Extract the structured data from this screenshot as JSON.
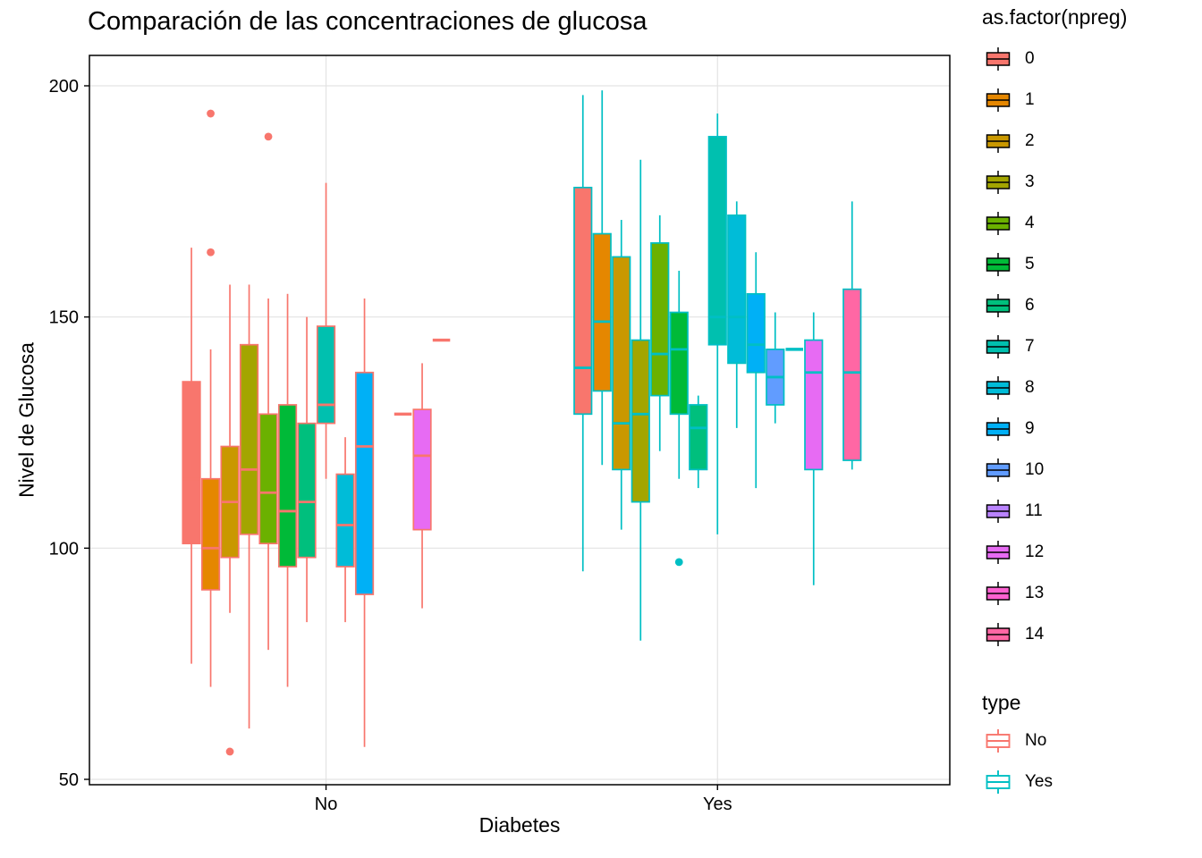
{
  "chart_data": {
    "type": "boxplot",
    "title": "Comparación de las concentraciones de glucosa",
    "xlabel": "Diabetes",
    "ylabel": "Nivel de Glucosa",
    "x_categories": [
      "No",
      "Yes"
    ],
    "y_ticks": [
      50,
      100,
      150,
      200
    ],
    "y_range": [
      48.5,
      206.5
    ],
    "grid": true,
    "legend_position": "right",
    "panel_border_color": "#000000",
    "grid_color": "#E3E3E3",
    "fill_legend_title": "as.factor(npreg)",
    "npreg_levels": [
      "0",
      "1",
      "2",
      "3",
      "4",
      "5",
      "6",
      "7",
      "8",
      "9",
      "10",
      "11",
      "12",
      "13",
      "14"
    ],
    "npreg_colors": [
      "#F8766D",
      "#E58700",
      "#C99800",
      "#A3A500",
      "#6BB100",
      "#00BA38",
      "#00BF7D",
      "#00C0AF",
      "#00BCD8",
      "#00B0F6",
      "#619CFF",
      "#B983FF",
      "#E76BF3",
      "#FD61D1",
      "#FF67A4"
    ],
    "type_legend_title": "type",
    "type_levels": [
      {
        "label": "No",
        "color": "#F8766D"
      },
      {
        "label": "Yes",
        "color": "#00BFC4"
      }
    ],
    "groups": [
      {
        "category": "No",
        "type": "No",
        "outline_color": "#F8766D",
        "boxes": [
          {
            "npreg": "0",
            "min": 75,
            "q1": 101,
            "median": 115,
            "q3": 136,
            "max": 165,
            "outliers": []
          },
          {
            "npreg": "1",
            "min": 70,
            "q1": 91,
            "median": 100,
            "q3": 115,
            "max": 143,
            "outliers": [
              164,
              194
            ]
          },
          {
            "npreg": "2",
            "min": 86,
            "q1": 98,
            "median": 110,
            "q3": 122,
            "max": 157,
            "outliers": [
              56
            ]
          },
          {
            "npreg": "3",
            "min": 61,
            "q1": 103,
            "median": 117,
            "q3": 144,
            "max": 157,
            "outliers": []
          },
          {
            "npreg": "4",
            "min": 78,
            "q1": 101,
            "median": 112,
            "q3": 129,
            "max": 154,
            "outliers": [
              189
            ]
          },
          {
            "npreg": "5",
            "min": 70,
            "q1": 96,
            "median": 108,
            "q3": 131,
            "max": 155,
            "outliers": []
          },
          {
            "npreg": "6",
            "min": 84,
            "q1": 98,
            "median": 110,
            "q3": 127,
            "max": 150,
            "outliers": []
          },
          {
            "npreg": "7",
            "min": 115,
            "q1": 127,
            "median": 131,
            "q3": 148,
            "max": 179,
            "outliers": []
          },
          {
            "npreg": "8",
            "min": 84,
            "q1": 96,
            "median": 105,
            "q3": 116,
            "max": 124,
            "outliers": []
          },
          {
            "npreg": "9",
            "min": 57,
            "q1": 90,
            "median": 122,
            "q3": 138,
            "max": 154,
            "outliers": []
          },
          {
            "npreg": "11",
            "min": 129,
            "q1": 129,
            "median": 129,
            "q3": 129,
            "max": 129,
            "outliers": []
          },
          {
            "npreg": "12",
            "min": 87,
            "q1": 104,
            "median": 120,
            "q3": 130,
            "max": 140,
            "outliers": []
          },
          {
            "npreg": "13",
            "min": 145,
            "q1": 145,
            "median": 145,
            "q3": 145,
            "max": 145,
            "outliers": []
          }
        ]
      },
      {
        "category": "Yes",
        "type": "Yes",
        "outline_color": "#00BFC4",
        "boxes": [
          {
            "npreg": "0",
            "min": 95,
            "q1": 129,
            "median": 139,
            "q3": 178,
            "max": 198,
            "outliers": []
          },
          {
            "npreg": "1",
            "min": 118,
            "q1": 134,
            "median": 149,
            "q3": 168,
            "max": 199,
            "outliers": []
          },
          {
            "npreg": "2",
            "min": 104,
            "q1": 117,
            "median": 127,
            "q3": 163,
            "max": 171,
            "outliers": []
          },
          {
            "npreg": "3",
            "min": 80,
            "q1": 110,
            "median": 129,
            "q3": 145,
            "max": 184,
            "outliers": []
          },
          {
            "npreg": "4",
            "min": 121,
            "q1": 133,
            "median": 142,
            "q3": 166,
            "max": 172,
            "outliers": []
          },
          {
            "npreg": "5",
            "min": 115,
            "q1": 129,
            "median": 143,
            "q3": 151,
            "max": 160,
            "outliers": [
              97
            ]
          },
          {
            "npreg": "6",
            "min": 113,
            "q1": 117,
            "median": 126,
            "q3": 131,
            "max": 133,
            "outliers": []
          },
          {
            "npreg": "7",
            "min": 103,
            "q1": 144,
            "median": 150,
            "q3": 189,
            "max": 194,
            "outliers": []
          },
          {
            "npreg": "8",
            "min": 126,
            "q1": 140,
            "median": 150,
            "q3": 172,
            "max": 175,
            "outliers": []
          },
          {
            "npreg": "9",
            "min": 113,
            "q1": 138,
            "median": 144,
            "q3": 155,
            "max": 164,
            "outliers": []
          },
          {
            "npreg": "10",
            "min": 127,
            "q1": 131,
            "median": 137,
            "q3": 143,
            "max": 151,
            "outliers": []
          },
          {
            "npreg": "11",
            "min": 143,
            "q1": 143,
            "median": 143,
            "q3": 143,
            "max": 143,
            "outliers": []
          },
          {
            "npreg": "12",
            "min": 92,
            "q1": 117,
            "median": 138,
            "q3": 145,
            "max": 151,
            "outliers": []
          },
          {
            "npreg": "14",
            "min": 117,
            "q1": 119,
            "median": 138,
            "q3": 156,
            "max": 175,
            "outliers": []
          }
        ]
      }
    ]
  }
}
